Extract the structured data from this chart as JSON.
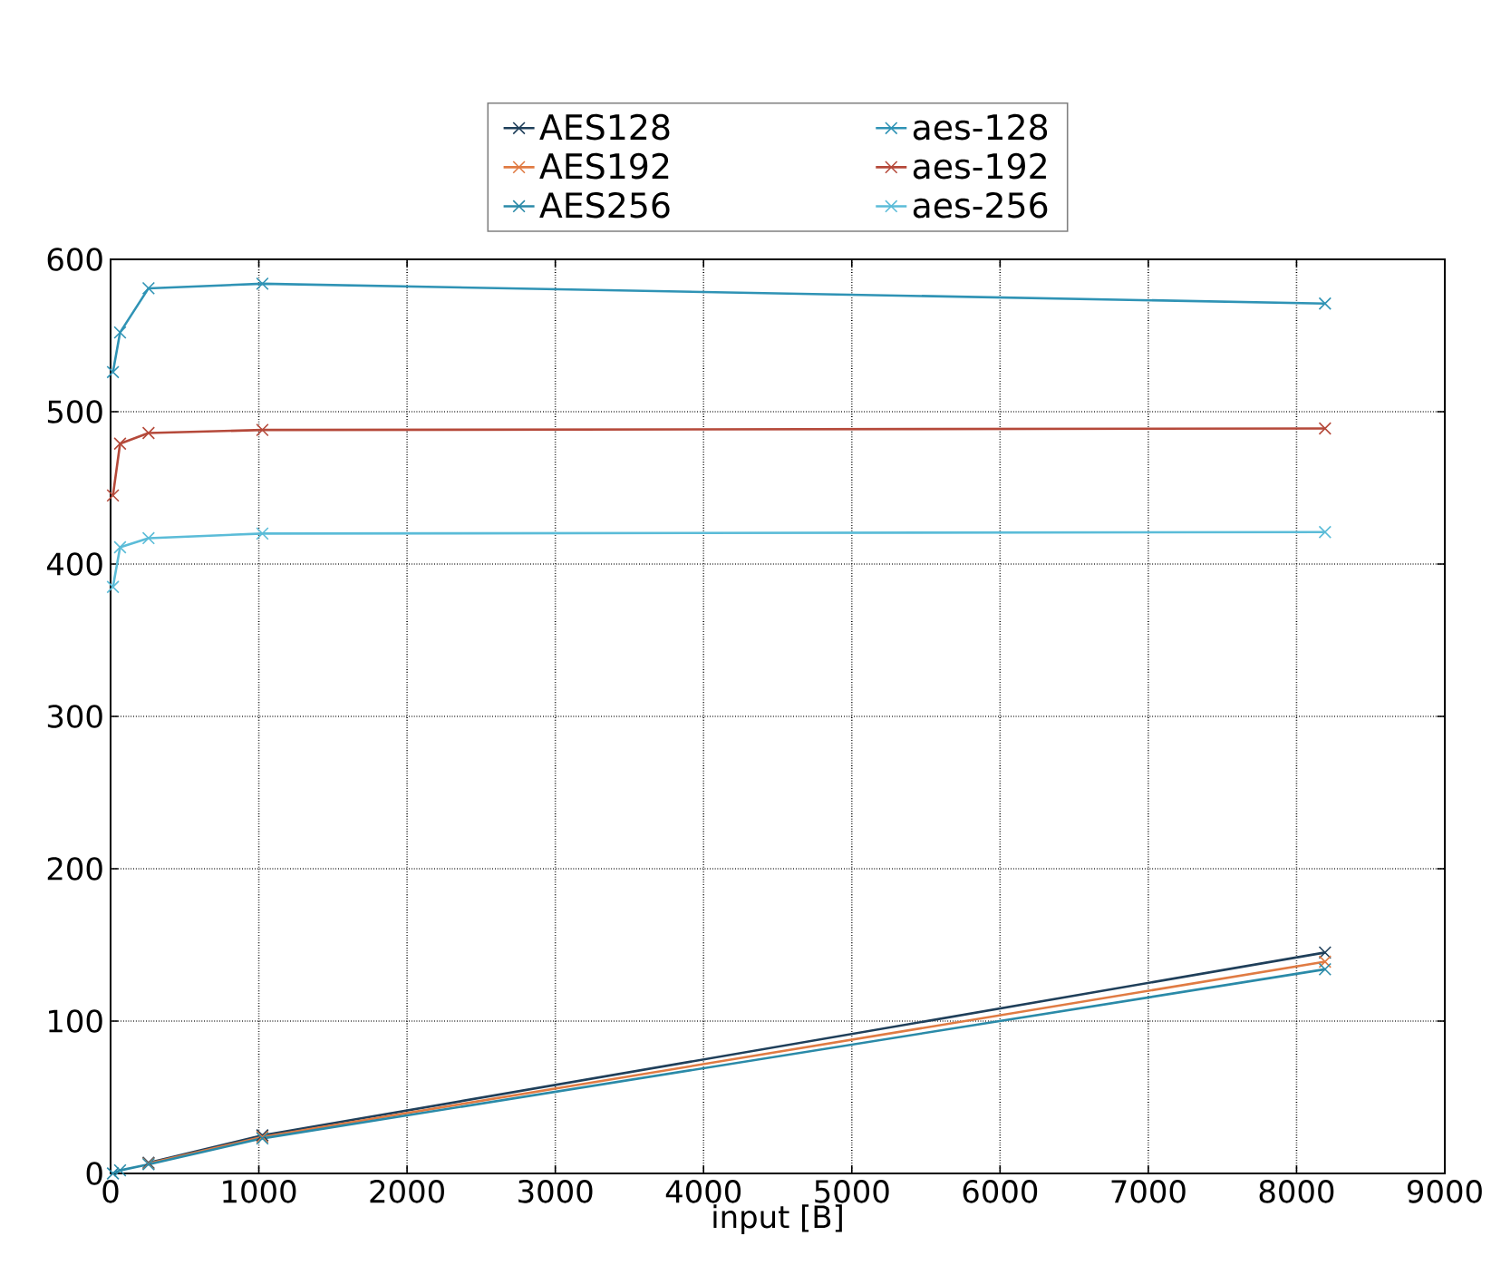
{
  "chart_data": {
    "type": "line",
    "xlabel": "input [B]",
    "x": [
      16,
      64,
      256,
      1024,
      8192
    ],
    "series": [
      {
        "name": "AES128",
        "color": "#1f3f5a",
        "values": [
          null,
          null,
          7,
          25,
          145
        ]
      },
      {
        "name": "AES192",
        "color": "#e07b43",
        "values": [
          null,
          null,
          6.5,
          24,
          139
        ]
      },
      {
        "name": "AES256",
        "color": "#2a8aa8",
        "values": [
          0,
          2,
          6,
          23,
          134
        ]
      },
      {
        "name": "aes-128",
        "color": "#2f93b5",
        "values": [
          526,
          552,
          581,
          584,
          571
        ]
      },
      {
        "name": "aes-192",
        "color": "#b5493a",
        "values": [
          445,
          479,
          486,
          488,
          489
        ]
      },
      {
        "name": "aes-256",
        "color": "#5bbcd8",
        "values": [
          385,
          411,
          417,
          420,
          421
        ]
      }
    ],
    "xlim": [
      0,
      9000
    ],
    "ylim": [
      0,
      600
    ],
    "xticks": [
      0,
      1000,
      2000,
      3000,
      4000,
      5000,
      6000,
      7000,
      8000,
      9000
    ],
    "yticks": [
      0,
      100,
      200,
      300,
      400,
      500,
      600
    ],
    "grid": true,
    "legend": "top",
    "marker": "cross",
    "line_style": "solid"
  }
}
